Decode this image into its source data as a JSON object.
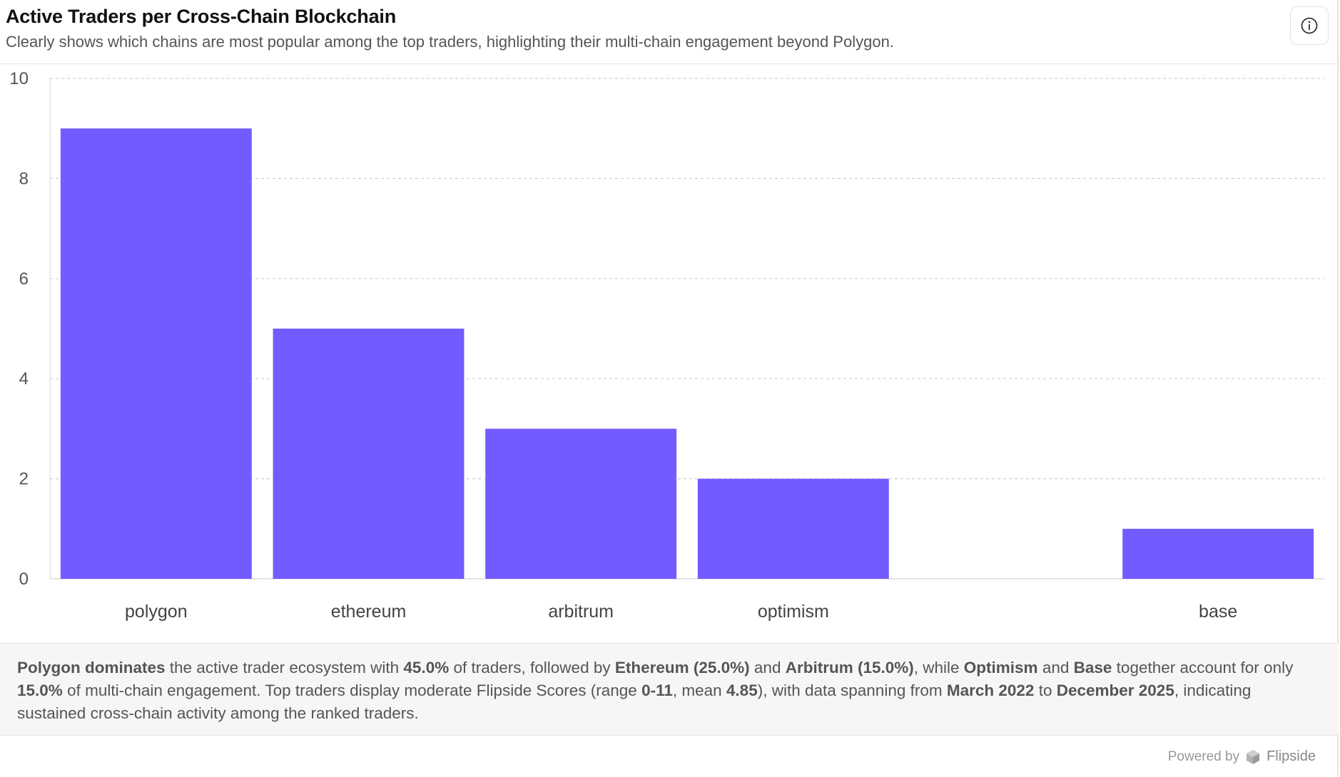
{
  "header": {
    "title": "Active Traders per Cross-Chain Blockchain",
    "subtitle": "Clearly shows which chains are most popular among the top traders, highlighting their multi-chain engagement beyond Polygon."
  },
  "chart_data": {
    "type": "bar",
    "title": "Active Traders per Cross-Chain Blockchain",
    "xlabel": "",
    "ylabel": "",
    "categories": [
      "polygon",
      "ethereum",
      "arbitrum",
      "optimism",
      "",
      "base"
    ],
    "values": [
      9,
      5,
      3,
      2,
      0,
      1
    ],
    "ylim": [
      0,
      10
    ],
    "yticks": [
      0,
      2,
      4,
      6,
      8,
      10
    ],
    "grid": true,
    "bar_color": "#735cff"
  },
  "summary": {
    "segments": [
      {
        "text": "Polygon dominates",
        "bold": true
      },
      {
        "text": " the active trader ecosystem with ",
        "bold": false
      },
      {
        "text": "45.0%",
        "bold": true
      },
      {
        "text": " of traders, followed by ",
        "bold": false
      },
      {
        "text": "Ethereum (25.0%)",
        "bold": true
      },
      {
        "text": " and ",
        "bold": false
      },
      {
        "text": "Arbitrum (15.0%)",
        "bold": true
      },
      {
        "text": ", while ",
        "bold": false
      },
      {
        "text": "Optimism",
        "bold": true
      },
      {
        "text": " and ",
        "bold": false
      },
      {
        "text": "Base",
        "bold": true
      },
      {
        "text": " together account for only ",
        "bold": false
      },
      {
        "text": "15.0%",
        "bold": true
      },
      {
        "text": " of multi-chain engagement. Top traders display moderate Flipside Scores (range ",
        "bold": false
      },
      {
        "text": "0-11",
        "bold": true
      },
      {
        "text": ", mean ",
        "bold": false
      },
      {
        "text": "4.85",
        "bold": true
      },
      {
        "text": "), with data spanning from ",
        "bold": false
      },
      {
        "text": "March 2022",
        "bold": true
      },
      {
        "text": " to ",
        "bold": false
      },
      {
        "text": "December 2025",
        "bold": true
      },
      {
        "text": ", indicating sustained cross-chain activity among the ranked traders.",
        "bold": false
      }
    ]
  },
  "footer": {
    "powered_by": "Powered by",
    "brand": "Flipside"
  },
  "icons": {
    "info": "info-icon",
    "brand_logo": "flipside-logo-icon"
  }
}
